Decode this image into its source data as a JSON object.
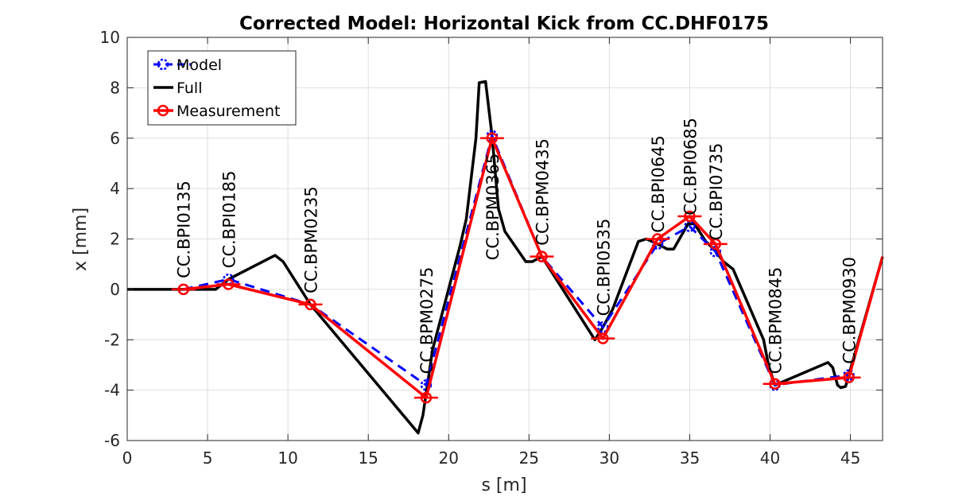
{
  "chart_data": {
    "type": "line",
    "title": "Corrected Model: Horizontal Kick from CC.DHF0175",
    "xlabel": "s [m]",
    "ylabel": "x [mm]",
    "xlim": [
      0,
      47
    ],
    "ylim": [
      -6,
      10
    ],
    "xticks": [
      0,
      5,
      10,
      15,
      20,
      25,
      30,
      35,
      40,
      45
    ],
    "yticks": [
      -6,
      -4,
      -2,
      0,
      2,
      4,
      6,
      8,
      10
    ],
    "grid": true,
    "legend_position": "top-left",
    "series": [
      {
        "name": "Model",
        "color": "#0000ff",
        "style": "dashed",
        "marker": "circle",
        "x": [
          3.5,
          6.3,
          11.4,
          18.6,
          22.7,
          25.8,
          29.6,
          33.0,
          35.0,
          36.6,
          40.3,
          44.9
        ],
        "y": [
          0.0,
          0.4,
          -0.6,
          -3.8,
          6.1,
          1.3,
          -1.5,
          1.8,
          2.5,
          1.5,
          -3.8,
          -3.4
        ]
      },
      {
        "name": "Full",
        "color": "#000000",
        "style": "solid",
        "x": [
          0,
          3.5,
          5.5,
          6.3,
          9.2,
          9.7,
          10.5,
          11.4,
          18.1,
          18.4,
          18.7,
          19.0,
          20.7,
          21.1,
          21.7,
          21.9,
          22.3,
          22.7,
          23.1,
          23.5,
          24.8,
          25.2,
          25.8,
          29.1,
          29.6,
          30.2,
          31.8,
          32.3,
          33.0,
          33.6,
          34.0,
          34.9,
          35.3,
          36.0,
          36.5,
          37.1,
          37.7,
          39.6,
          39.9,
          40.3,
          43.6,
          43.9,
          44.2,
          44.4,
          44.7,
          47.0
        ],
        "y": [
          0.0,
          0.0,
          0.0,
          0.4,
          1.35,
          1.1,
          0.3,
          -0.6,
          -5.7,
          -5.0,
          -3.7,
          -2.4,
          1.7,
          2.8,
          6.0,
          8.2,
          8.25,
          6.1,
          3.2,
          2.3,
          1.1,
          1.1,
          1.3,
          -2.0,
          -1.5,
          -0.8,
          1.9,
          2.0,
          1.8,
          1.6,
          1.6,
          2.6,
          2.6,
          1.9,
          1.6,
          1.1,
          0.8,
          -2.0,
          -3.0,
          -3.8,
          -2.9,
          -3.1,
          -3.8,
          -3.9,
          -3.85,
          1.3
        ]
      },
      {
        "name": "Measurement",
        "color": "#ff0000",
        "style": "solid",
        "marker": "circle-plus",
        "x": [
          3.5,
          6.3,
          11.4,
          18.6,
          22.7,
          25.8,
          29.6,
          33.0,
          35.0,
          36.6,
          40.3,
          44.9,
          47.0
        ],
        "y": [
          0.0,
          0.2,
          -0.6,
          -4.3,
          6.0,
          1.3,
          -1.95,
          2.0,
          2.9,
          1.8,
          -3.75,
          -3.5,
          1.3
        ]
      }
    ],
    "bpm_labels": [
      {
        "text": "CC.BPI0135",
        "s": 3.5,
        "x": 0.0,
        "pos": "above"
      },
      {
        "text": "CC.BPI0185",
        "s": 6.3,
        "x": 0.4,
        "pos": "above"
      },
      {
        "text": "CC.BPM0235",
        "s": 11.4,
        "x": -0.6,
        "pos": "above"
      },
      {
        "text": "CC.BPM0275",
        "s": 18.6,
        "x": -3.8,
        "pos": "above"
      },
      {
        "text": "CC.BPM0365",
        "s": 22.7,
        "x": 6.1,
        "pos": "below"
      },
      {
        "text": "CC.BPM0435",
        "s": 25.8,
        "x": 1.3,
        "pos": "above"
      },
      {
        "text": "CC.BPI0535",
        "s": 29.6,
        "x": -1.5,
        "pos": "above"
      },
      {
        "text": "CC.BPI0645",
        "s": 33.0,
        "x": 1.8,
        "pos": "above"
      },
      {
        "text": "CC.BPI0685",
        "s": 35.0,
        "x": 2.5,
        "pos": "above"
      },
      {
        "text": "CC.BPI0735",
        "s": 36.6,
        "x": 1.5,
        "pos": "above"
      },
      {
        "text": "CC.BPM0845",
        "s": 40.3,
        "x": -3.8,
        "pos": "above"
      },
      {
        "text": "CC.BPM0930",
        "s": 44.9,
        "x": -3.4,
        "pos": "above"
      }
    ]
  }
}
